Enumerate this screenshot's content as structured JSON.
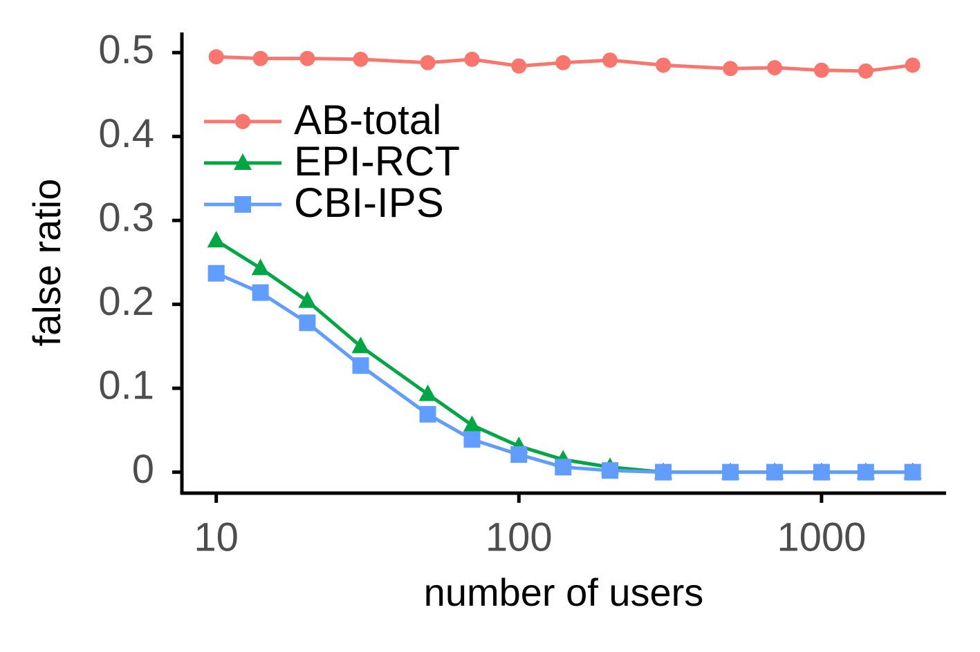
{
  "chart_data": {
    "type": "line",
    "x_label": "number of users",
    "y_label": "false ratio",
    "x": [
      10,
      14,
      20,
      30,
      50,
      70,
      100,
      140,
      200,
      300,
      500,
      700,
      1000,
      1400,
      2000
    ],
    "series": [
      {
        "name": "AB-total",
        "color": "#f8766d",
        "marker": "circle",
        "values": [
          0.495,
          0.493,
          0.493,
          0.492,
          0.488,
          0.492,
          0.484,
          0.488,
          0.491,
          0.485,
          0.481,
          0.482,
          0.479,
          0.478,
          0.485
        ]
      },
      {
        "name": "EPI-RCT",
        "color": "#00a645",
        "marker": "triangle",
        "values": [
          0.276,
          0.243,
          0.204,
          0.15,
          0.093,
          0.056,
          0.031,
          0.015,
          0.006,
          0,
          0,
          0,
          0,
          0,
          0
        ]
      },
      {
        "name": "CBI-IPS",
        "color": "#619cff",
        "marker": "square",
        "values": [
          0.237,
          0.214,
          0.178,
          0.127,
          0.069,
          0.039,
          0.021,
          0.006,
          0.002,
          0,
          0,
          0,
          0,
          0,
          0
        ]
      }
    ],
    "xscale": "log",
    "xlim": [
      7.7,
      2580
    ],
    "xticks": [
      10,
      100,
      1000
    ],
    "ylim": [
      -0.025,
      0.524
    ],
    "yticks": [
      0,
      0.1,
      0.2,
      0.3,
      0.4,
      0.5
    ],
    "legend": "upper left"
  }
}
